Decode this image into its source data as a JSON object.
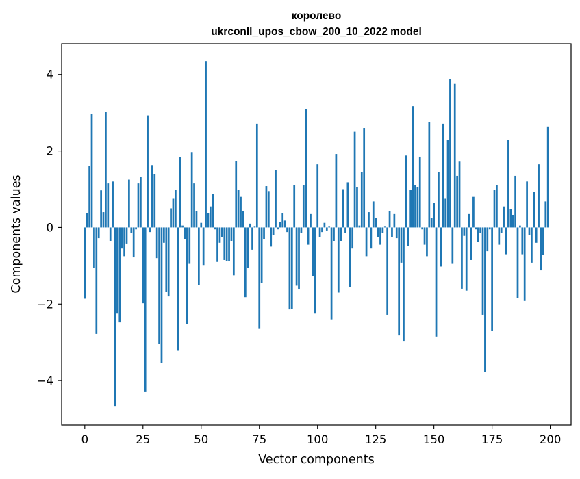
{
  "chart_data": {
    "type": "bar",
    "title_lines": [
      "королево",
      "ukrconll_upos_cbow_200_10_2022 model"
    ],
    "xlabel": "Vector components",
    "ylabel": "Components values",
    "xlim": [
      -9.95,
      208.95
    ],
    "ylim": [
      -5.16,
      4.8
    ],
    "xticks": [
      0,
      25,
      50,
      75,
      100,
      125,
      150,
      175,
      200
    ],
    "yticks": [
      -4,
      -2,
      0,
      2,
      4
    ],
    "xtick_labels": [
      "0",
      "25",
      "50",
      "75",
      "100",
      "125",
      "150",
      "175",
      "200"
    ],
    "ytick_labels": [
      "−4",
      "−2",
      "0",
      "2",
      "4"
    ],
    "grid": false,
    "legend": "none",
    "bar_color": "#1f77b4",
    "x": [
      0,
      1,
      2,
      3,
      4,
      5,
      6,
      7,
      8,
      9,
      10,
      11,
      12,
      13,
      14,
      15,
      16,
      17,
      18,
      19,
      20,
      21,
      22,
      23,
      24,
      25,
      26,
      27,
      28,
      29,
      30,
      31,
      32,
      33,
      34,
      35,
      36,
      37,
      38,
      39,
      40,
      41,
      42,
      43,
      44,
      45,
      46,
      47,
      48,
      49,
      50,
      51,
      52,
      53,
      54,
      55,
      56,
      57,
      58,
      59,
      60,
      61,
      62,
      63,
      64,
      65,
      66,
      67,
      68,
      69,
      70,
      71,
      72,
      73,
      74,
      75,
      76,
      77,
      78,
      79,
      80,
      81,
      82,
      83,
      84,
      85,
      86,
      87,
      88,
      89,
      90,
      91,
      92,
      93,
      94,
      95,
      96,
      97,
      98,
      99,
      100,
      101,
      102,
      103,
      104,
      105,
      106,
      107,
      108,
      109,
      110,
      111,
      112,
      113,
      114,
      115,
      116,
      117,
      118,
      119,
      120,
      121,
      122,
      123,
      124,
      125,
      126,
      127,
      128,
      129,
      130,
      131,
      132,
      133,
      134,
      135,
      136,
      137,
      138,
      139,
      140,
      141,
      142,
      143,
      144,
      145,
      146,
      147,
      148,
      149,
      150,
      151,
      152,
      153,
      154,
      155,
      156,
      157,
      158,
      159,
      160,
      161,
      162,
      163,
      164,
      165,
      166,
      167,
      168,
      169,
      170,
      171,
      172,
      173,
      174,
      175,
      176,
      177,
      178,
      179,
      180,
      181,
      182,
      183,
      184,
      185,
      186,
      187,
      188,
      189,
      190,
      191,
      192,
      193,
      194,
      195,
      196,
      197,
      198,
      199
    ],
    "values": [
      -1.86,
      0.38,
      1.6,
      2.96,
      -1.05,
      -2.78,
      -0.28,
      0.97,
      0.4,
      3.02,
      1.15,
      -0.35,
      1.2,
      -4.68,
      -2.25,
      -2.48,
      -0.55,
      -0.75,
      -0.42,
      1.25,
      -0.15,
      -0.78,
      -0.05,
      1.15,
      1.32,
      -1.98,
      -4.3,
      2.93,
      -0.12,
      1.63,
      1.4,
      -0.8,
      -3.05,
      -3.55,
      -0.4,
      -1.68,
      -1.8,
      0.5,
      0.75,
      0.98,
      -3.22,
      1.84,
      0.05,
      -0.3,
      -2.52,
      -0.95,
      1.97,
      1.15,
      0.42,
      -1.5,
      0.12,
      -0.98,
      4.35,
      0.38,
      0.55,
      0.88,
      -0.05,
      -0.9,
      -0.4,
      -0.25,
      -0.85,
      -0.88,
      -0.88,
      -0.35,
      -1.25,
      1.74,
      0.98,
      0.8,
      0.42,
      -1.82,
      -1.05,
      0.1,
      -0.58,
      0.02,
      2.71,
      -2.65,
      -1.45,
      -0.3,
      1.08,
      0.95,
      -0.5,
      -0.2,
      1.5,
      -0.05,
      0.15,
      0.38,
      0.18,
      -0.12,
      -2.14,
      -2.12,
      1.1,
      -1.52,
      -1.62,
      -0.15,
      1.1,
      3.1,
      -0.45,
      0.35,
      -1.28,
      -2.25,
      1.65,
      -0.25,
      -0.12,
      0.12,
      -0.08,
      0.02,
      -2.4,
      -0.35,
      1.92,
      -1.7,
      -0.35,
      1.0,
      -0.15,
      1.18,
      -1.55,
      -0.55,
      2.5,
      1.05,
      0.05,
      1.45,
      2.6,
      -0.75,
      0.4,
      -0.55,
      0.68,
      0.25,
      -0.25,
      -0.45,
      -0.15,
      0.02,
      -2.28,
      0.42,
      -0.25,
      0.35,
      -0.28,
      -2.82,
      -0.92,
      -2.98,
      1.88,
      -0.48,
      0.98,
      3.17,
      1.1,
      1.05,
      1.85,
      -0.05,
      -0.45,
      -0.75,
      2.76,
      0.25,
      0.65,
      -2.85,
      1.45,
      -1.02,
      2.71,
      0.75,
      2.28,
      3.88,
      -0.95,
      3.75,
      1.35,
      1.72,
      -1.6,
      -0.22,
      -1.65,
      0.35,
      -0.85,
      0.8,
      -0.05,
      -0.38,
      -0.15,
      -2.28,
      -3.78,
      -0.62,
      -0.05,
      -2.7,
      0.98,
      1.1,
      -0.45,
      -0.15,
      0.55,
      -0.7,
      2.29,
      0.48,
      0.33,
      1.35,
      -1.85,
      0.05,
      -0.7,
      -1.92,
      1.2,
      -0.2,
      -0.92,
      0.92,
      -0.4,
      1.65,
      -1.12,
      -0.72,
      0.68,
      2.64
    ]
  }
}
